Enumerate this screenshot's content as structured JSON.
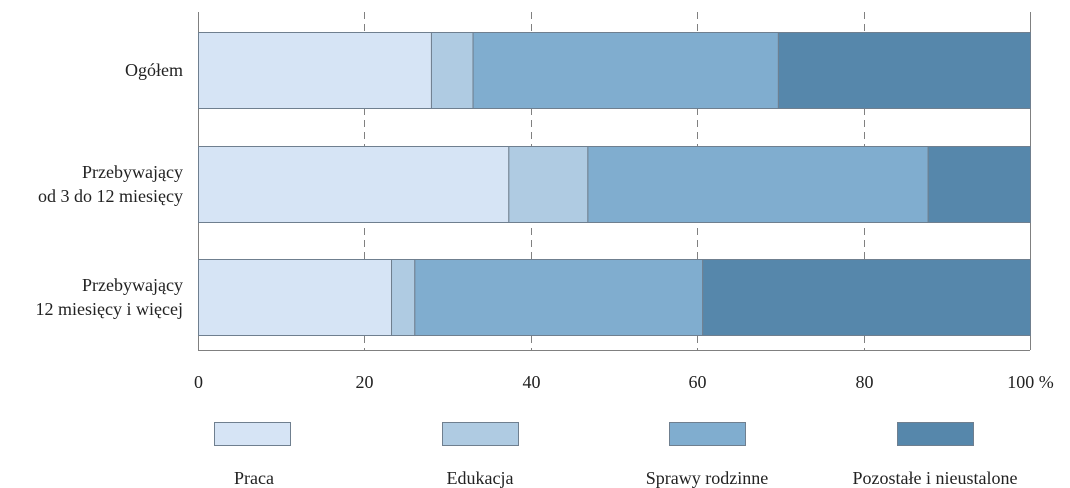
{
  "chart_data": {
    "type": "bar",
    "orientation": "horizontal",
    "stacked": true,
    "categories": [
      "Ogółem",
      "Przebywający\nod 3 do 12 miesięcy",
      "Przebywający\n12 miesięcy i więcej"
    ],
    "series": [
      {
        "name": "Praca",
        "color": "#d6e4f5",
        "values": [
          28,
          37.3,
          23.2
        ]
      },
      {
        "name": "Edukacja",
        "color": "#afcbe2",
        "values": [
          5,
          9.5,
          2.8
        ]
      },
      {
        "name": "Sprawy rodzinne",
        "color": "#80adcf",
        "values": [
          36.7,
          40.9,
          34.6
        ]
      },
      {
        "name": "Pozostałe i nieustalone",
        "color": "#5687ab",
        "values": [
          30.3,
          12.3,
          39.4
        ]
      }
    ],
    "x_ticks": [
      "0",
      "20",
      "40",
      "60",
      "80",
      "100 %"
    ],
    "xlim": [
      0,
      100
    ],
    "grid": true,
    "legend_position": "bottom"
  }
}
